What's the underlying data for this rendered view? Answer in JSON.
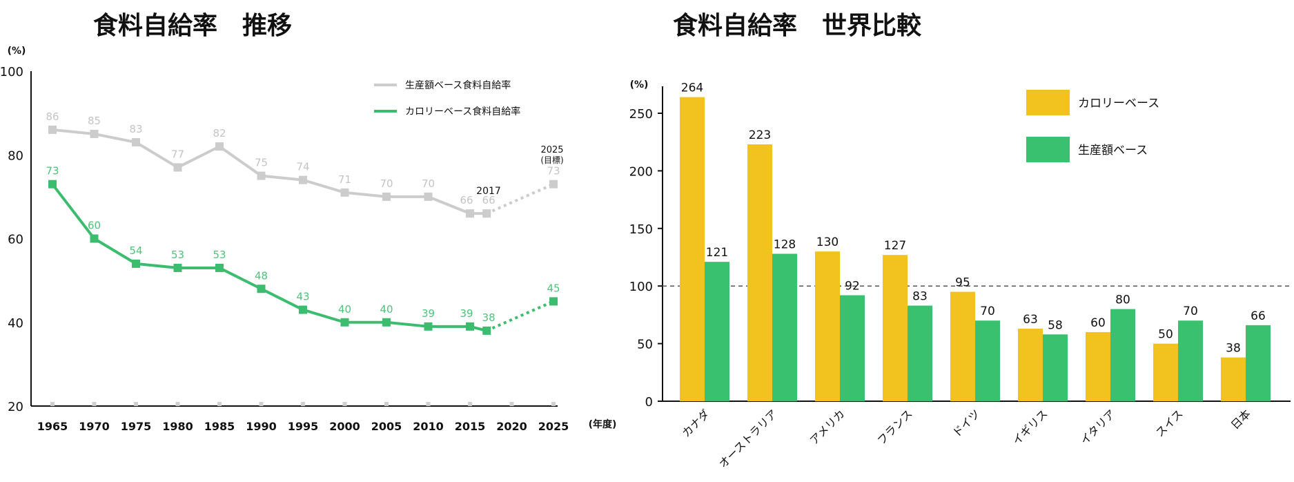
{
  "chart_data": [
    {
      "type": "line",
      "title": "食料自給率　推移",
      "ylabel": "(%)",
      "xlabel": "(年度)",
      "ylim": [
        20,
        100
      ],
      "yticks": [
        20,
        40,
        60,
        80,
        100
      ],
      "xticks": [
        1965,
        1970,
        1975,
        1980,
        1985,
        1990,
        1995,
        2000,
        2005,
        2010,
        2015,
        2020,
        2025
      ],
      "xlim": [
        1965,
        2025
      ],
      "legend_position": "top-right",
      "target_label": "2025\n(目標)",
      "year_annotation": "2017",
      "series": [
        {
          "name": "生産額ベース食料自給率",
          "color": "#cccccc",
          "label_color": "#c4c4c4",
          "x": [
            1965,
            1970,
            1975,
            1980,
            1985,
            1990,
            1995,
            2000,
            2005,
            2010,
            2015,
            2017
          ],
          "values": [
            86,
            85,
            83,
            77,
            82,
            75,
            74,
            71,
            70,
            70,
            66,
            66
          ],
          "target": {
            "x": 2025,
            "value": 73
          }
        },
        {
          "name": "カロリーベース食料自給率",
          "color": "#3cbc6e",
          "label_color": "#4cc47a",
          "x": [
            1965,
            1970,
            1975,
            1980,
            1985,
            1990,
            1995,
            2000,
            2005,
            2010,
            2015,
            2017
          ],
          "values": [
            73,
            60,
            54,
            53,
            53,
            48,
            43,
            40,
            40,
            39,
            39,
            38
          ],
          "target": {
            "x": 2025,
            "value": 45
          }
        }
      ]
    },
    {
      "type": "bar",
      "title": "食料自給率　世界比較",
      "ylabel": "(%)",
      "ylim": [
        0,
        264
      ],
      "yticks": [
        0,
        50,
        100,
        150,
        200,
        250
      ],
      "reference_line": 100,
      "legend_position": "top-right",
      "categories": [
        "カナダ",
        "オーストラリア",
        "アメリカ",
        "フランス",
        "ドイツ",
        "イギリス",
        "イタリア",
        "スイス",
        "日本"
      ],
      "series": [
        {
          "name": "カロリーベース",
          "color": "#f2c21f",
          "values": [
            264,
            223,
            130,
            127,
            95,
            63,
            60,
            50,
            38
          ]
        },
        {
          "name": "生産額ベース",
          "color": "#3ac16f",
          "values": [
            121,
            128,
            92,
            83,
            70,
            58,
            80,
            70,
            66
          ]
        }
      ]
    }
  ]
}
